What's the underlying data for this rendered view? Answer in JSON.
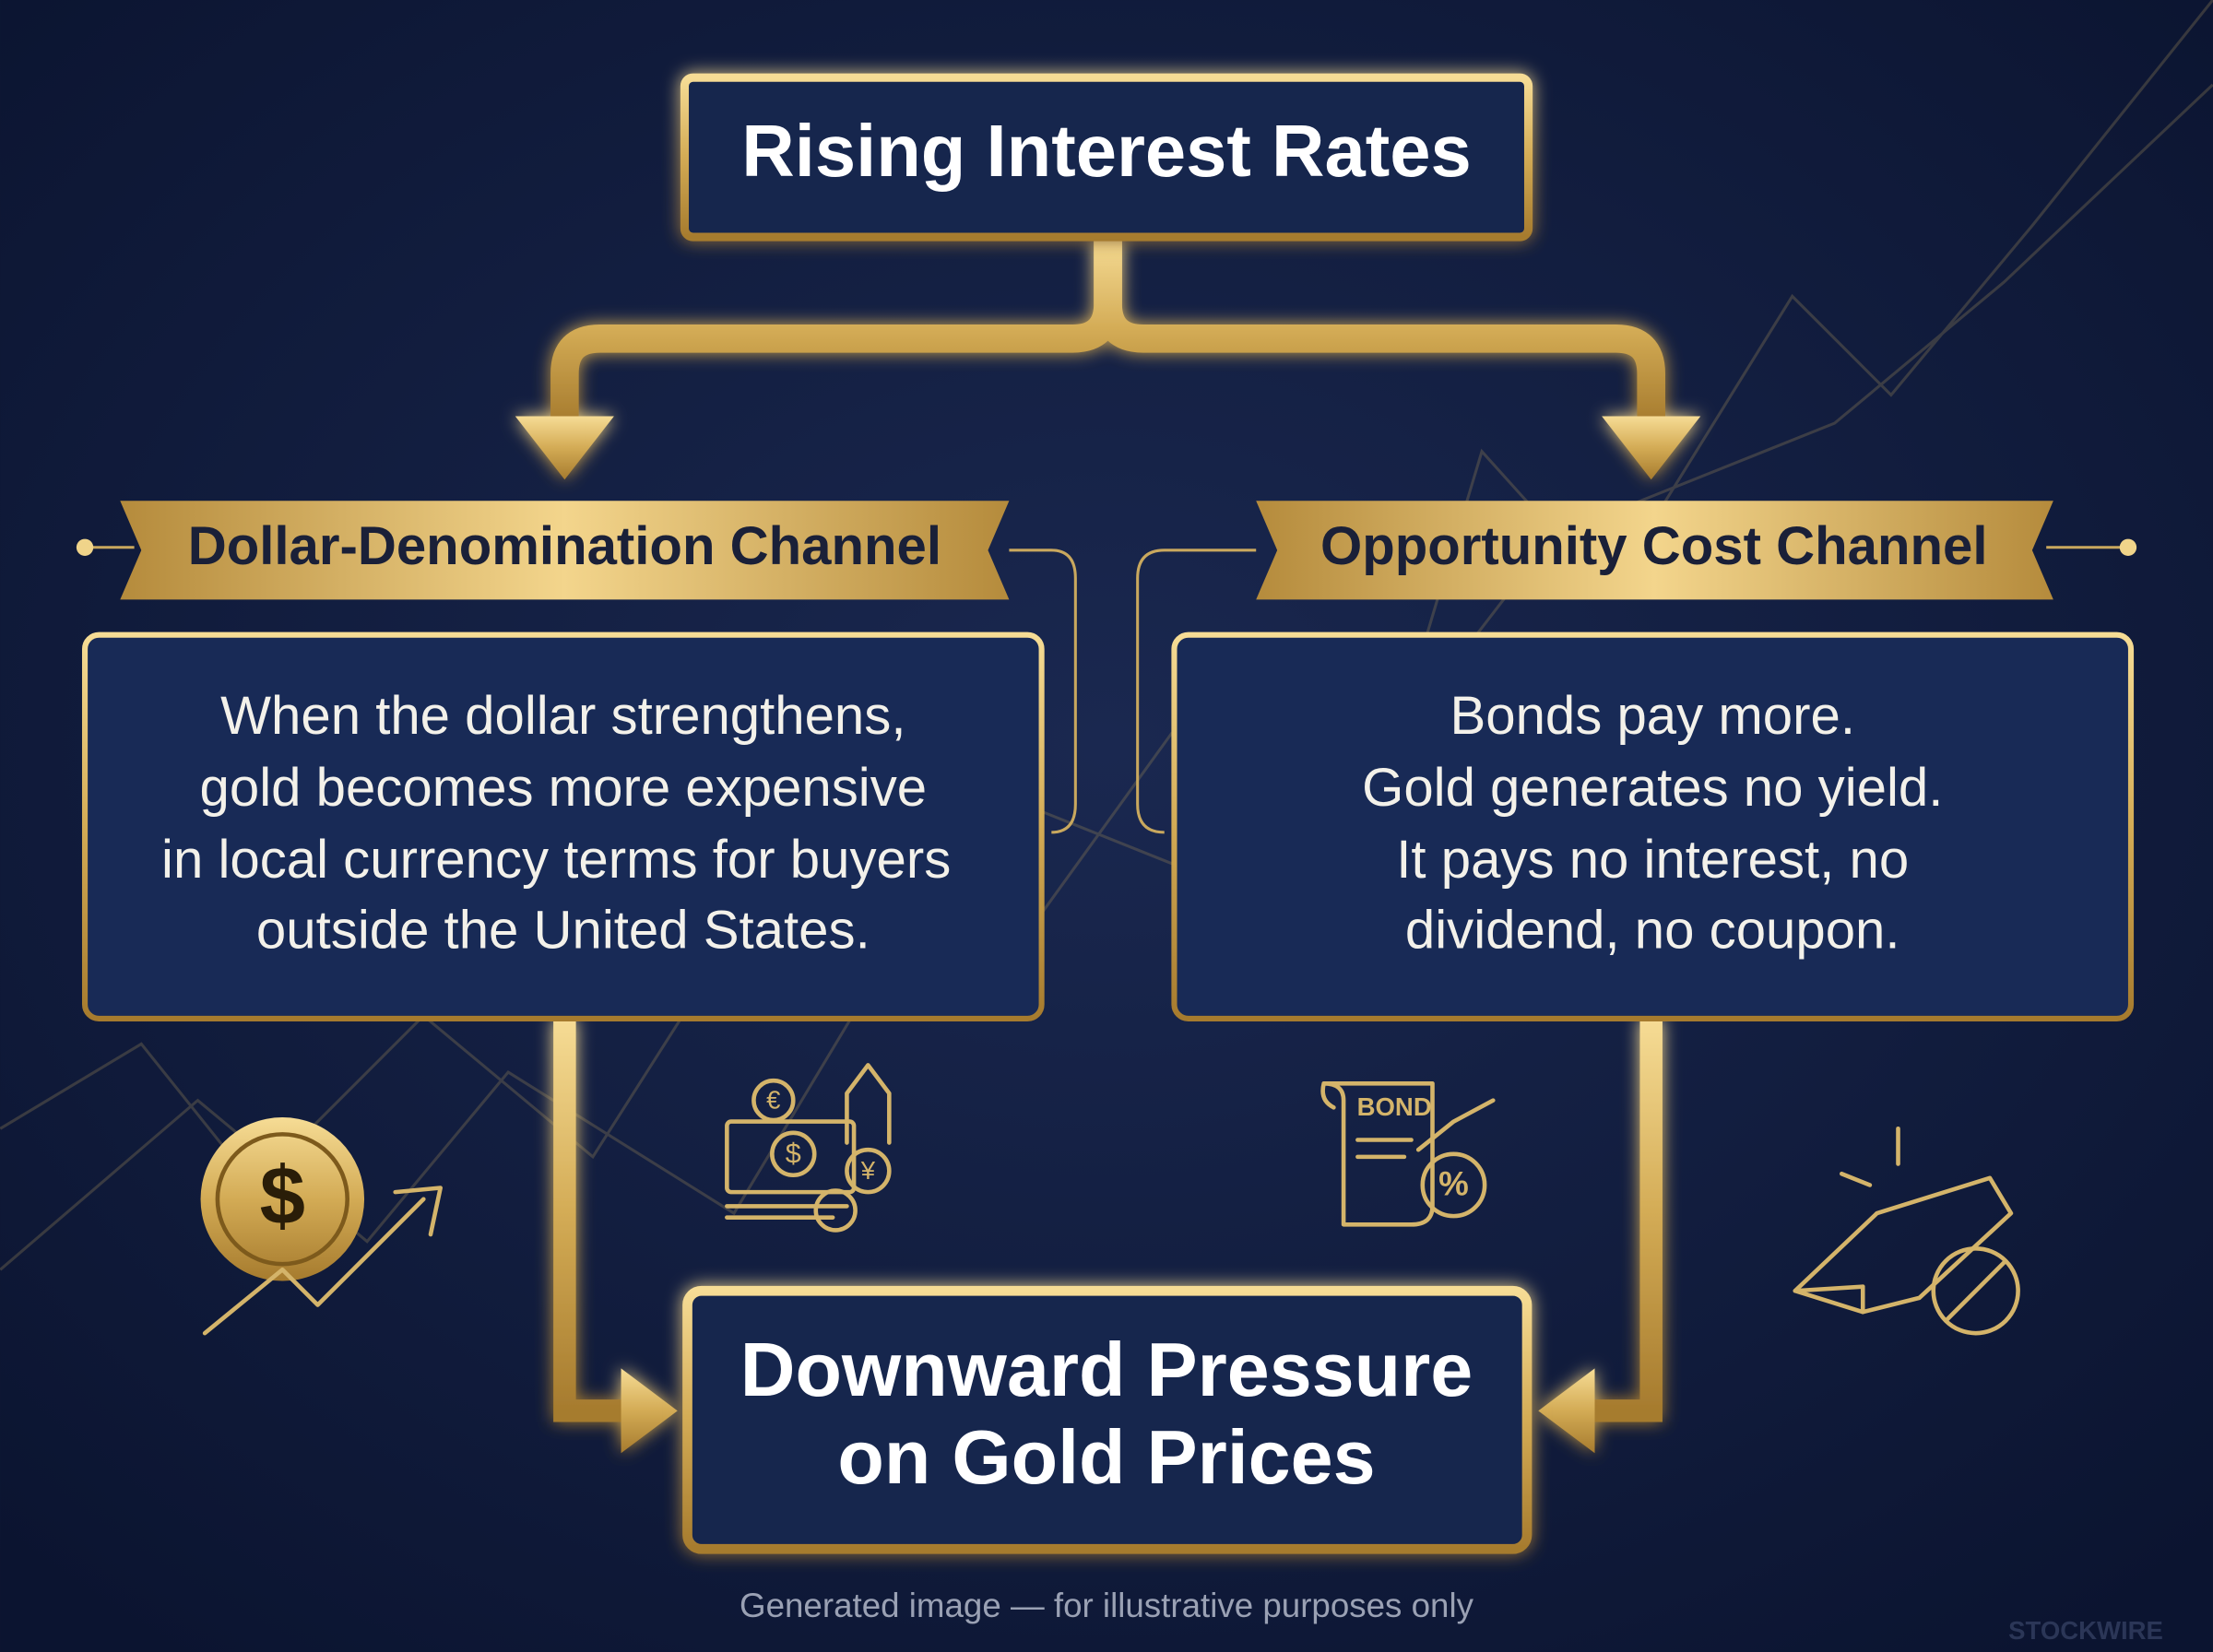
{
  "top": {
    "title": "Rising Interest Rates"
  },
  "channels": [
    {
      "label": "Dollar-Denomination Channel",
      "lines": [
        "When the dollar strengthens,",
        "gold becomes more expensive",
        "in local currency terms for buyers",
        "outside the United States."
      ]
    },
    {
      "label": "Opportunity Cost Channel",
      "lines": [
        "Bonds pay more.",
        "Gold generates no yield.",
        "It pays no interest, no",
        "dividend, no coupon."
      ]
    }
  ],
  "result": {
    "lines": [
      "Downward Pressure",
      "on Gold Prices"
    ]
  },
  "icons": {
    "dollar": "$",
    "currency_symbols": [
      "€",
      "$",
      "¥"
    ],
    "bond": "BOND",
    "percent": "%"
  },
  "footer": "Generated image — for illustrative purposes only",
  "watermark": "STOCKWIRE"
}
